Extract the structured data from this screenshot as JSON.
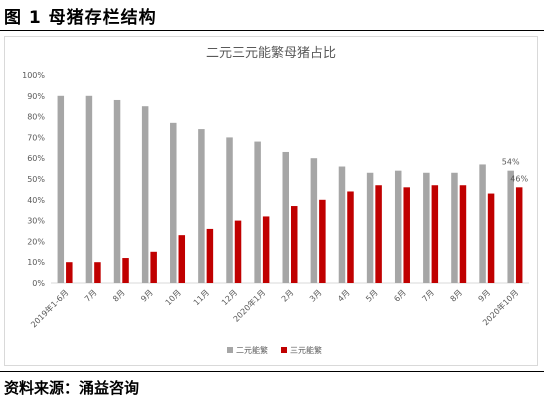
{
  "figure_title": "图 1  母猪存栏结构",
  "source": "资料来源：涌益咨询",
  "chart_data": {
    "type": "bar",
    "title": "二元三元能繁母猪占比",
    "categories": [
      "2019年1-6月",
      "7月",
      "8月",
      "9月",
      "10月",
      "11月",
      "12月",
      "2020年1月",
      "2月",
      "3月",
      "4月",
      "5月",
      "6月",
      "7月",
      "8月",
      "9月",
      "2020年10月"
    ],
    "series": [
      {
        "name": "二元能繁",
        "color": "#a6a6a6",
        "values": [
          90,
          90,
          88,
          85,
          77,
          74,
          70,
          68,
          63,
          60,
          56,
          53,
          54,
          53,
          53,
          57,
          54
        ]
      },
      {
        "name": "三元能繁",
        "color": "#c00000",
        "values": [
          10,
          10,
          12,
          15,
          23,
          26,
          30,
          32,
          37,
          40,
          44,
          47,
          46,
          47,
          47,
          43,
          46
        ]
      }
    ],
    "ylim": [
      0,
      100
    ],
    "yticks": [
      "0%",
      "10%",
      "20%",
      "30%",
      "40%",
      "50%",
      "60%",
      "70%",
      "80%",
      "90%",
      "100%"
    ],
    "annotations": [
      "54%",
      "46%"
    ],
    "legend_position": "bottom",
    "grid": false
  }
}
